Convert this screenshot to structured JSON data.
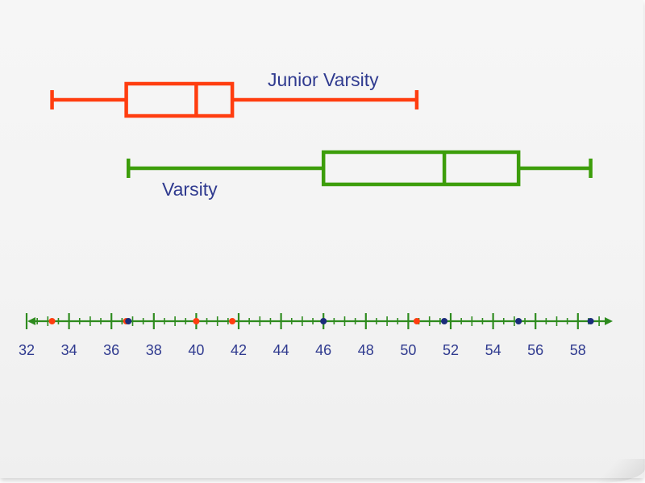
{
  "colors": {
    "junior_varsity": "#ff3d0f",
    "varsity": "#3c9d0a",
    "text": "#2f3a8f",
    "axis": "#2e8b1e",
    "points_varsity": "#1a2c7a"
  },
  "chart_data": {
    "type": "boxplot",
    "title": "",
    "series": [
      {
        "name": "Junior Varsity",
        "min": 33.2,
        "q1": 36.7,
        "median": 40,
        "q3": 41.7,
        "max": 50.4
      },
      {
        "name": "Varsity",
        "min": 36.8,
        "q1": 46,
        "median": 51.7,
        "q3": 55.2,
        "max": 58.6
      }
    ],
    "axis": {
      "ticks": [
        32,
        34,
        36,
        38,
        40,
        42,
        44,
        46,
        48,
        50,
        52,
        54,
        56,
        58
      ],
      "range": [
        32,
        59.5
      ],
      "minor_step": 0.5,
      "arrows": "both"
    }
  }
}
